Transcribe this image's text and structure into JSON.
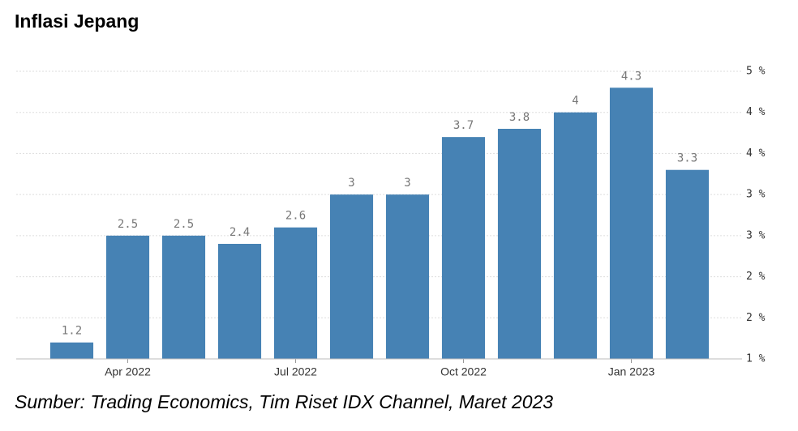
{
  "chart_data": {
    "type": "bar",
    "title": "Inflasi Jepang",
    "source": "Sumber: Trading Economics, Tim Riset IDX Channel, Maret 2023",
    "categories": [
      null,
      "Apr 2022",
      null,
      null,
      "Jul 2022",
      null,
      null,
      "Oct 2022",
      null,
      null,
      "Jan 2023",
      null
    ],
    "values": [
      1.2,
      2.5,
      2.5,
      2.4,
      2.6,
      3,
      3,
      3.7,
      3.8,
      4,
      4.3,
      3.3
    ],
    "color": "#4682b4",
    "ylim": [
      1,
      4.5
    ],
    "yticks": [
      {
        "value": 1,
        "label": "1 %"
      },
      {
        "value": 1.5,
        "label": "2 %"
      },
      {
        "value": 2,
        "label": "2 %"
      },
      {
        "value": 2.5,
        "label": "3 %"
      },
      {
        "value": 3,
        "label": "3 %"
      },
      {
        "value": 3.5,
        "label": "4 %"
      },
      {
        "value": 4,
        "label": "4 %"
      },
      {
        "value": 4.5,
        "label": "5 %"
      }
    ],
    "grid": true
  }
}
